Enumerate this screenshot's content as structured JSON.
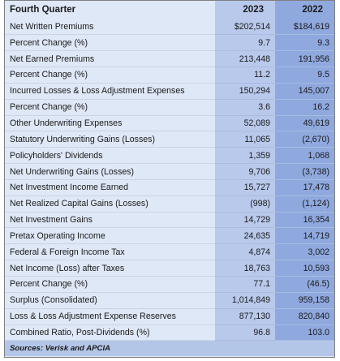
{
  "table": {
    "header": {
      "label": "Fourth Quarter",
      "year1": "2023",
      "year2": "2022"
    },
    "rows": [
      {
        "label": "Net Written Premiums",
        "y2023": "$202,514",
        "y2022": "$184,619"
      },
      {
        "label": "Percent Change (%)",
        "y2023": "9.7",
        "y2022": "9.3"
      },
      {
        "label": "Net Earned Premiums",
        "y2023": "213,448",
        "y2022": "191,956"
      },
      {
        "label": "Percent Change (%)",
        "y2023": "11.2",
        "y2022": "9.5"
      },
      {
        "label": "Incurred Losses & Loss Adjustment Expenses",
        "y2023": "150,294",
        "y2022": "145,007"
      },
      {
        "label": "Percent Change (%)",
        "y2023": "3.6",
        "y2022": "16.2"
      },
      {
        "label": "Other Underwriting Expenses",
        "y2023": "52,089",
        "y2022": "49,619"
      },
      {
        "label": "Statutory Underwriting Gains (Losses)",
        "y2023": "11,065",
        "y2022": "(2,670)"
      },
      {
        "label": "Policyholders' Dividends",
        "y2023": "1,359",
        "y2022": "1,068"
      },
      {
        "label": "Net Underwriting Gains (Losses)",
        "y2023": "9,706",
        "y2022": "(3,738)"
      },
      {
        "label": "Net Investment Income Earned",
        "y2023": "15,727",
        "y2022": "17,478"
      },
      {
        "label": "Net Realized Capital Gains (Losses)",
        "y2023": "(998)",
        "y2022": "(1,124)"
      },
      {
        "label": "Net Investment Gains",
        "y2023": "14,729",
        "y2022": "16,354"
      },
      {
        "label": "Pretax Operating Income",
        "y2023": "24,635",
        "y2022": "14,719"
      },
      {
        "label": "Federal & Foreign Income Tax",
        "y2023": "4,874",
        "y2022": "3,002"
      },
      {
        "label": "Net Income (Loss) after Taxes",
        "y2023": "18,763",
        "y2022": "10,593"
      },
      {
        "label": "Percent Change (%)",
        "y2023": "77.1",
        "y2022": "(46.5)"
      },
      {
        "label": "Surplus (Consolidated)",
        "y2023": "1,014,849",
        "y2022": "959,158"
      },
      {
        "label": "Loss & Loss Adjustment Expense Reserves",
        "y2023": "877,130",
        "y2022": "820,840"
      },
      {
        "label": "Combined Ratio, Post-Dividends (%)",
        "y2023": "96.8",
        "y2022": "103.0"
      }
    ],
    "source": "Sources: Verisk and APCIA"
  },
  "colors": {
    "label_column": "#dfe8f7",
    "year1_column": "#b8c9ec",
    "year2_column": "#8fa9df",
    "footer": "#b4c6e8"
  }
}
